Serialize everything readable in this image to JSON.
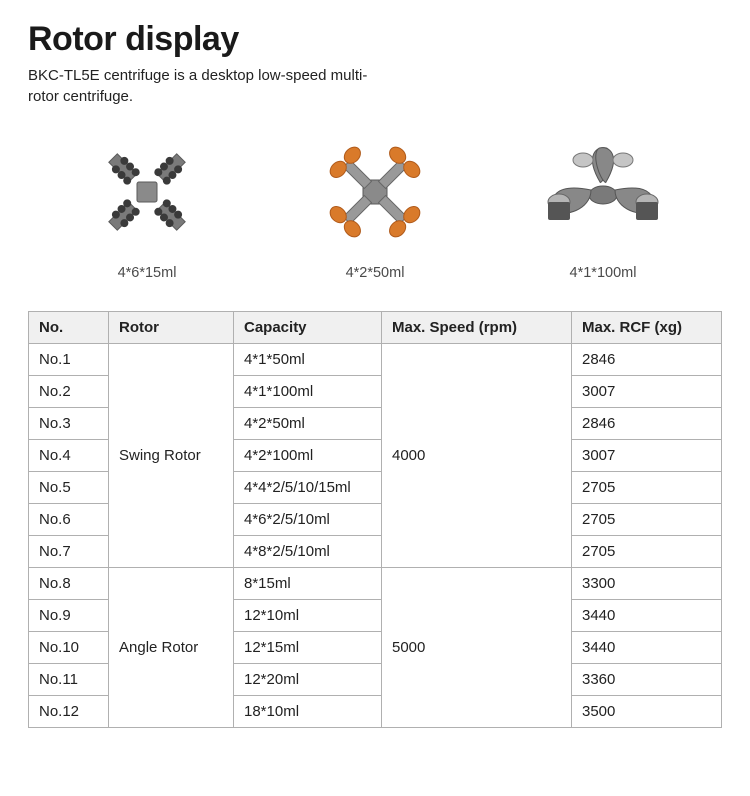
{
  "header": {
    "title": "Rotor display",
    "subtitle": "BKC-TL5E centrifuge is a desktop low-speed multi-rotor centrifuge."
  },
  "products": [
    {
      "label": "4*6*15ml",
      "icon": "rotor-a"
    },
    {
      "label": "4*2*50ml",
      "icon": "rotor-b"
    },
    {
      "label": "4*1*100ml",
      "icon": "rotor-c"
    }
  ],
  "table": {
    "columns": [
      "No.",
      "Rotor",
      "Capacity",
      "Max. Speed (rpm)",
      "Max. RCF (xg)"
    ],
    "groups": [
      {
        "rotor": "Swing Rotor",
        "speed": "4000",
        "rows": [
          {
            "no": "No.1",
            "capacity": "4*1*50ml",
            "rcf": "2846"
          },
          {
            "no": "No.2",
            "capacity": "4*1*100ml",
            "rcf": "3007"
          },
          {
            "no": "No.3",
            "capacity": "4*2*50ml",
            "rcf": "2846"
          },
          {
            "no": "No.4",
            "capacity": "4*2*100ml",
            "rcf": "3007"
          },
          {
            "no": "No.5",
            "capacity": "4*4*2/5/10/15ml",
            "rcf": "2705"
          },
          {
            "no": "No.6",
            "capacity": "4*6*2/5/10ml",
            "rcf": "2705"
          },
          {
            "no": "No.7",
            "capacity": "4*8*2/5/10ml",
            "rcf": "2705"
          }
        ]
      },
      {
        "rotor": "Angle Rotor",
        "speed": "5000",
        "rows": [
          {
            "no": "No.8",
            "capacity": "8*15ml",
            "rcf": "3300"
          },
          {
            "no": "No.9",
            "capacity": "12*10ml",
            "rcf": "3440"
          },
          {
            "no": "No.10",
            "capacity": "12*15ml",
            "rcf": "3440"
          },
          {
            "no": "No.11",
            "capacity": "12*20ml",
            "rcf": "3360"
          },
          {
            "no": "No.12",
            "capacity": "18*10ml",
            "rcf": "3500"
          }
        ]
      }
    ],
    "header_bg": "#f0f0f0",
    "border_color": "#b0b0b0",
    "text_color": "#222222",
    "font_size": 15
  },
  "colors": {
    "background": "#ffffff",
    "title_color": "#1a1a1a",
    "label_color": "#4a4a4a",
    "accent_orange": "#d97a2a",
    "metal_gray": "#8a8a8a",
    "metal_dark": "#5a5a5a"
  }
}
